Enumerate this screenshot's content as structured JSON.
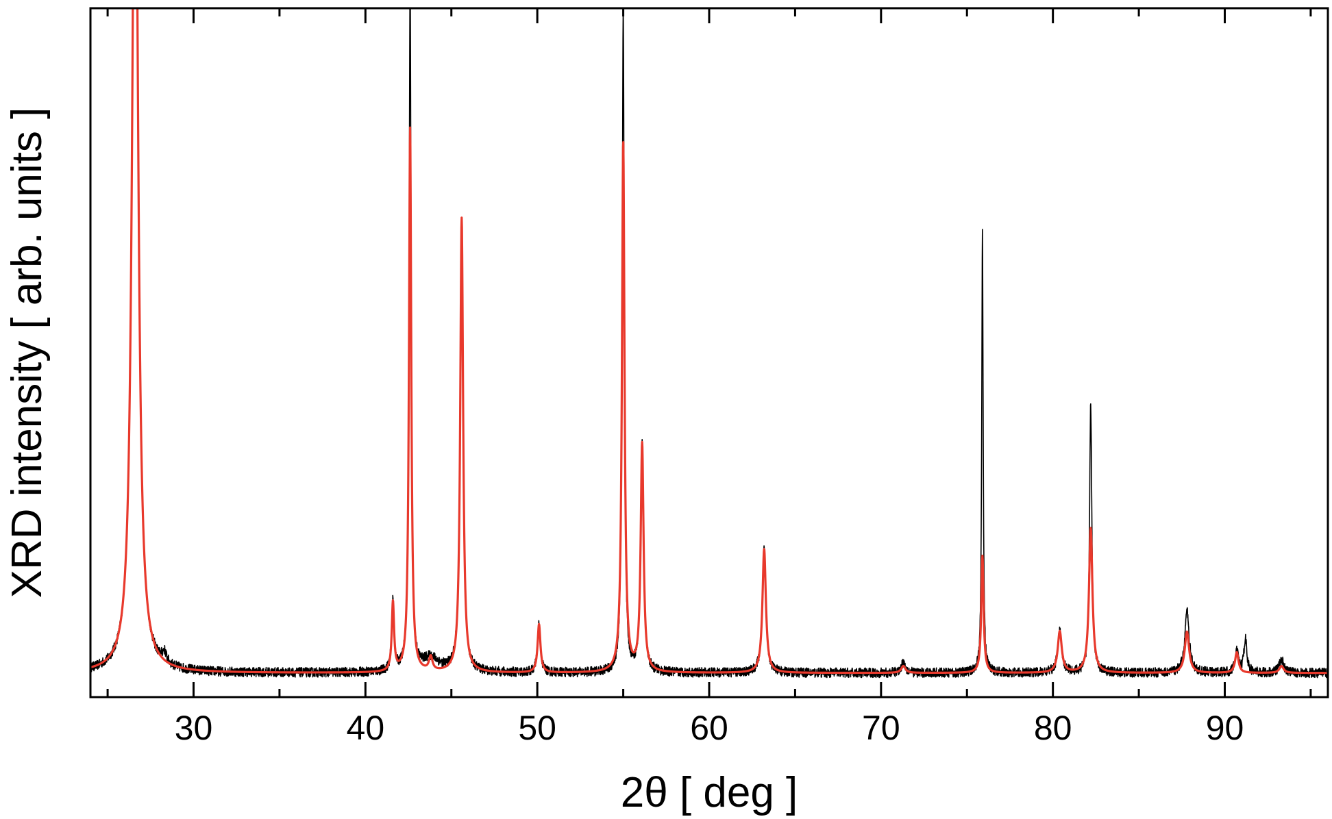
{
  "chart_data": {
    "type": "line",
    "title": "",
    "xlabel": "2θ  [ deg ]",
    "ylabel": "XRD intensity  [ arb. units ]",
    "xlim": [
      24,
      96
    ],
    "ylim": [
      0,
      100
    ],
    "x_ticks_major": [
      30,
      40,
      50,
      60,
      70,
      80,
      90
    ],
    "x_ticks_major_labels": [
      "30",
      "40",
      "50",
      "60",
      "70",
      "80",
      "90"
    ],
    "x_ticks_minor": [
      25,
      35,
      45,
      55,
      65,
      75,
      85,
      95
    ],
    "y_ticks_labeled": false,
    "grid": false,
    "legend": "none",
    "series": [
      {
        "style": "noisy-measured",
        "color": "#000000",
        "baseline": 3.5,
        "noise": 0.7,
        "peaks": [
          {
            "x": 26.6,
            "height": 140,
            "width": 0.2
          },
          {
            "x": 28.3,
            "height": 1.5,
            "width": 0.15
          },
          {
            "x": 41.6,
            "height": 10,
            "width": 0.08
          },
          {
            "x": 42.6,
            "height": 100,
            "width": 0.07
          },
          {
            "x": 43.8,
            "height": 2,
            "width": 0.6
          },
          {
            "x": 45.6,
            "height": 66,
            "width": 0.1
          },
          {
            "x": 50.1,
            "height": 7,
            "width": 0.1
          },
          {
            "x": 55.0,
            "height": 96,
            "width": 0.07
          },
          {
            "x": 56.1,
            "height": 33,
            "width": 0.1
          },
          {
            "x": 63.2,
            "height": 18,
            "width": 0.12
          },
          {
            "x": 71.3,
            "height": 1.5,
            "width": 0.15
          },
          {
            "x": 75.9,
            "height": 64,
            "width": 0.05
          },
          {
            "x": 80.4,
            "height": 6,
            "width": 0.14
          },
          {
            "x": 82.2,
            "height": 39,
            "width": 0.08
          },
          {
            "x": 87.8,
            "height": 9,
            "width": 0.15
          },
          {
            "x": 90.7,
            "height": 3,
            "width": 0.12
          },
          {
            "x": 91.2,
            "height": 5,
            "width": 0.1
          },
          {
            "x": 93.3,
            "height": 2,
            "width": 0.15
          }
        ]
      },
      {
        "style": "smooth-fit",
        "color": "#e8392c",
        "baseline": 3.5,
        "noise": 0,
        "peaks": [
          {
            "x": 26.6,
            "height": 140,
            "width": 0.2
          },
          {
            "x": 41.6,
            "height": 10,
            "width": 0.08
          },
          {
            "x": 42.6,
            "height": 79,
            "width": 0.08
          },
          {
            "x": 43.8,
            "height": 2,
            "width": 0.12
          },
          {
            "x": 45.6,
            "height": 66,
            "width": 0.1
          },
          {
            "x": 50.1,
            "height": 7,
            "width": 0.1
          },
          {
            "x": 55.0,
            "height": 77,
            "width": 0.09
          },
          {
            "x": 56.1,
            "height": 33,
            "width": 0.1
          },
          {
            "x": 63.2,
            "height": 18,
            "width": 0.12
          },
          {
            "x": 71.3,
            "height": 1,
            "width": 0.15
          },
          {
            "x": 75.9,
            "height": 17,
            "width": 0.08
          },
          {
            "x": 80.4,
            "height": 6,
            "width": 0.14
          },
          {
            "x": 82.2,
            "height": 21,
            "width": 0.12
          },
          {
            "x": 87.8,
            "height": 6,
            "width": 0.15
          },
          {
            "x": 90.7,
            "height": 3,
            "width": 0.12
          },
          {
            "x": 93.3,
            "height": 1,
            "width": 0.15
          }
        ]
      }
    ]
  }
}
